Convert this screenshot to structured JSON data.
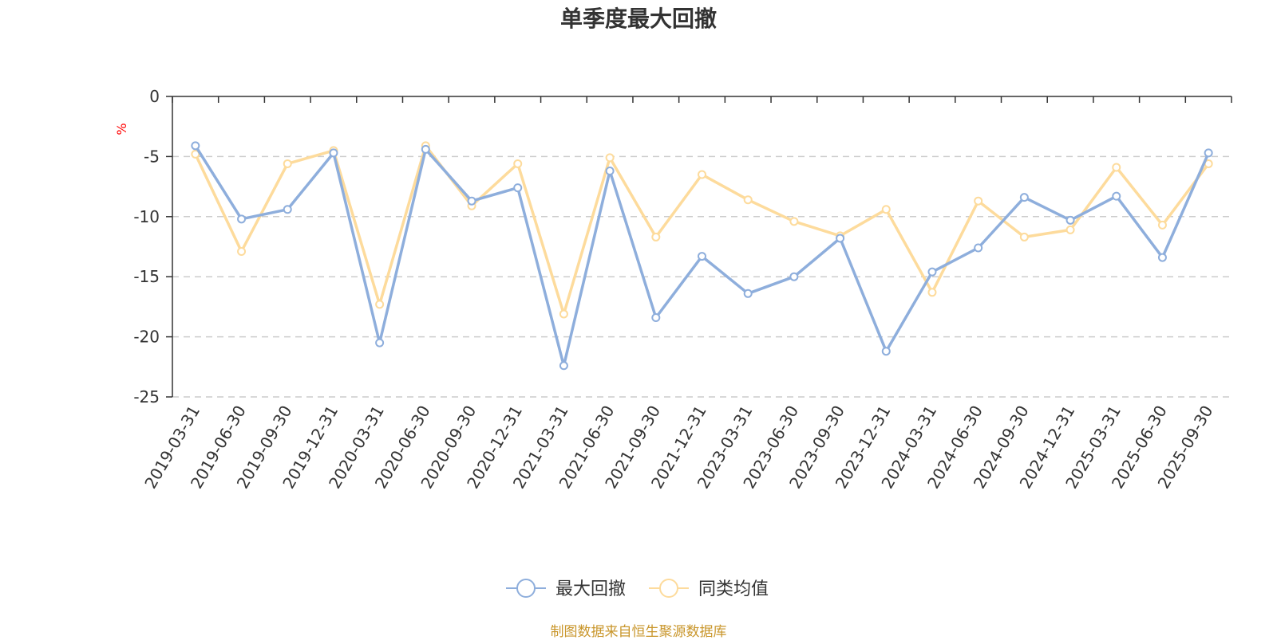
{
  "chart_data": {
    "type": "line",
    "title": "单季度最大回撤",
    "y_unit": "%",
    "ylim": [
      -25,
      0
    ],
    "yticks": [
      0,
      -5,
      -10,
      -15,
      -20,
      -25
    ],
    "grid": true,
    "legend_position": "bottom-center",
    "categories": [
      "2019-03-31",
      "2019-06-30",
      "2019-09-30",
      "2019-12-31",
      "2020-03-31",
      "2020-06-30",
      "2020-09-30",
      "2020-12-31",
      "2021-03-31",
      "2021-06-30",
      "2021-09-30",
      "2021-12-31",
      "2023-03-31",
      "2023-06-30",
      "2023-09-30",
      "2023-12-31",
      "2024-03-31",
      "2024-06-30",
      "2024-09-30",
      "2024-12-31",
      "2025-03-31",
      "2025-06-30",
      "2025-09-30"
    ],
    "series": [
      {
        "name": "最大回撤",
        "color": "#8eaedc",
        "values": [
          -4.1,
          -10.2,
          -9.4,
          -4.7,
          -20.5,
          -4.4,
          -8.7,
          -7.6,
          -22.4,
          -6.2,
          -18.4,
          -13.3,
          -16.4,
          -15.0,
          -11.8,
          -21.2,
          -14.6,
          -12.6,
          -8.4,
          -10.3,
          -8.3,
          -13.4,
          -4.7
        ]
      },
      {
        "name": "同类均值",
        "color": "#fddb9c",
        "values": [
          -4.8,
          -12.9,
          -5.6,
          -4.5,
          -17.3,
          -4.1,
          -9.1,
          -5.6,
          -18.1,
          -5.1,
          -11.7,
          -6.5,
          -8.6,
          -10.4,
          -11.6,
          -9.4,
          -16.3,
          -8.7,
          -11.7,
          -11.1,
          -5.9,
          -10.7,
          -5.6
        ]
      }
    ],
    "source": "制图数据来自恒生聚源数据库"
  }
}
